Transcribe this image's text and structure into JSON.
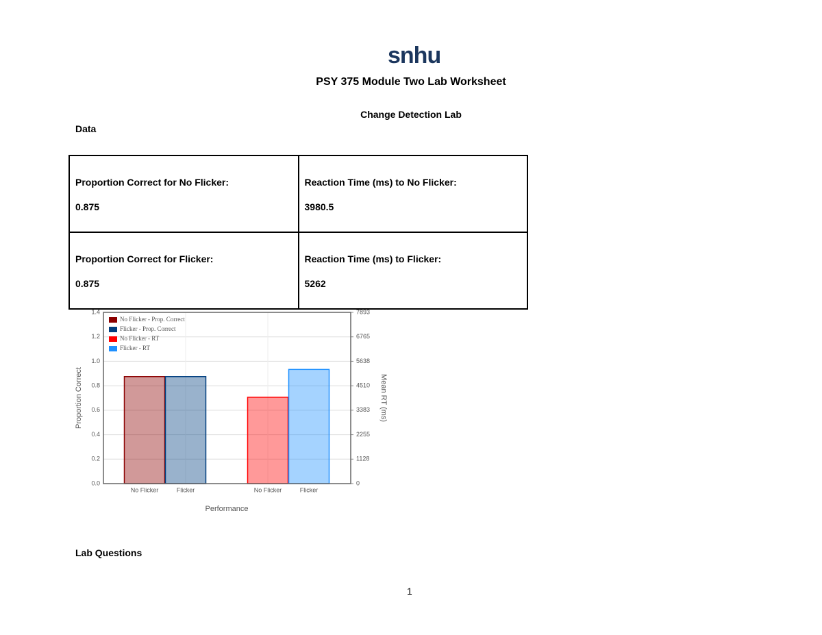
{
  "header": {
    "logo": "snhu",
    "title": "PSY 375 Module Two Lab Worksheet",
    "subtitle": "Change Detection Lab"
  },
  "section_data": "Data",
  "table": {
    "rows": [
      [
        {
          "label": "Proportion Correct for No Flicker:",
          "value": 0.875
        },
        {
          "label": "Reaction Time (ms) to No Flicker:",
          "value": 3980.5
        }
      ],
      [
        {
          "label": "Proportion Correct for Flicker:",
          "value": 0.875
        },
        {
          "label": "Reaction Time (ms) to Flicker:",
          "value": 5262
        }
      ]
    ]
  },
  "chart_data": {
    "type": "bar",
    "x_label": "Performance",
    "y_label": "Proportion Correct",
    "y2_label": "Mean RT (ms)",
    "categories": [
      "No Flicker",
      "Flicker",
      "No Flicker",
      "Flicker"
    ],
    "series": [
      {
        "name": "No Flicker - Prop. Correct",
        "color": "#8b0000",
        "values": [
          0.875,
          null,
          null,
          null
        ]
      },
      {
        "name": "Flicker - Prop. Correct",
        "color": "#003f7f",
        "values": [
          null,
          0.875,
          null,
          null
        ]
      },
      {
        "name": "No Flicker - RT",
        "color": "#ff0000",
        "axis": "y2",
        "values": [
          null,
          null,
          3980.5,
          null
        ]
      },
      {
        "name": "Flicker - RT",
        "color": "#1e90ff",
        "axis": "y2",
        "values": [
          null,
          null,
          null,
          5262
        ]
      }
    ],
    "ylim": [
      0,
      1.4
    ],
    "yticks": [
      {
        "value": 0,
        "label": "0.0"
      },
      0.2,
      0.4,
      0.6,
      0.8,
      {
        "value": 1,
        "label": "1.0"
      },
      1.2,
      1.4
    ],
    "y2lim": [
      0,
      7893
    ],
    "y2ticks": [
      0,
      1128,
      2255,
      3383,
      4510,
      5638,
      6765,
      7893
    ],
    "grid": true
  },
  "section_questions": "Lab Questions",
  "page_number": 1
}
